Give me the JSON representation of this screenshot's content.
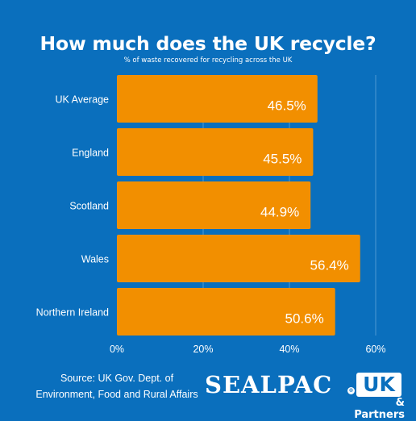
{
  "chart_data": {
    "type": "bar",
    "orientation": "horizontal",
    "title": "How much does the UK recycle?",
    "subtitle": "% of waste recovered for recycling across the UK",
    "categories": [
      "UK Average",
      "England",
      "Scotland",
      "Wales",
      "Northern Ireland"
    ],
    "values": [
      46.5,
      45.5,
      44.9,
      56.4,
      50.6
    ],
    "data_labels": [
      "46.5%",
      "45.5%",
      "44.9%",
      "56.4%",
      "50.6%"
    ],
    "x_ticks": [
      "0%",
      "20%",
      "40%",
      "60%"
    ],
    "xlim": [
      0,
      60
    ],
    "grid": true,
    "bar_color": "#f28f00",
    "background_color": "#0a6fbd"
  },
  "source": "Source: UK Gov. Dept. of Environment, Food and Rural Affairs",
  "logo": {
    "word": "SEALPAC",
    "reg": "®",
    "box": "UK",
    "partners": "& Partners"
  }
}
